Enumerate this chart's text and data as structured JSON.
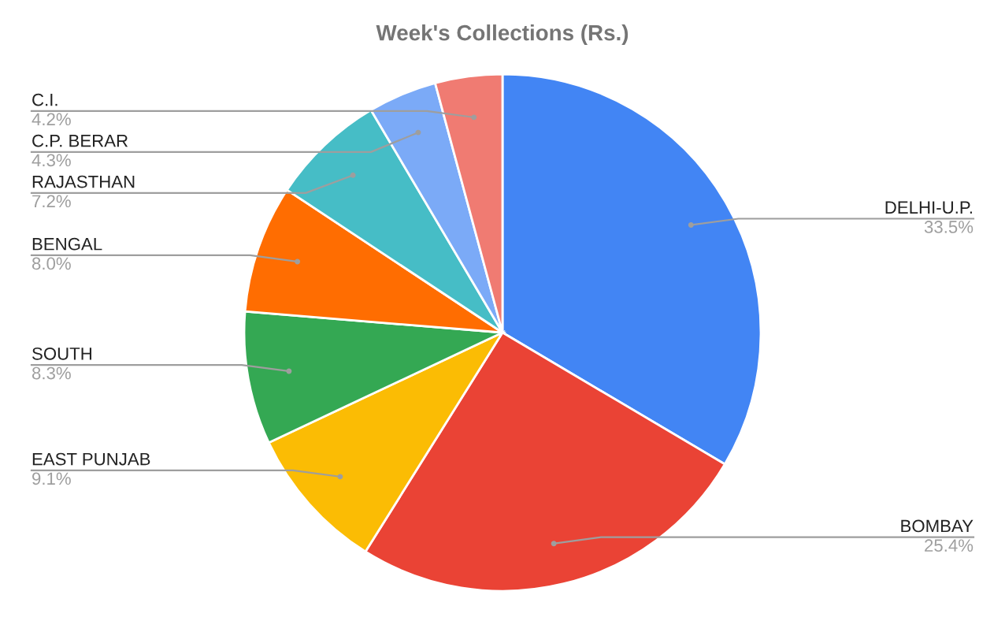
{
  "chart_data": {
    "type": "pie",
    "title": "Week's Collections (Rs.)",
    "categories": [
      "DELHI-U.P.",
      "BOMBAY",
      "EAST PUNJAB",
      "SOUTH",
      "BENGAL",
      "RAJASTHAN",
      "C.P. BERAR",
      "C.I."
    ],
    "values": [
      33.5,
      25.4,
      9.1,
      8.3,
      8.0,
      7.2,
      4.3,
      4.2
    ],
    "value_labels": [
      "33.5%",
      "25.4%",
      "9.1%",
      "8.3%",
      "8.0%",
      "7.2%",
      "4.3%",
      "4.2%"
    ],
    "colors": [
      "#4285f4",
      "#ea4335",
      "#fbbc04",
      "#34a853",
      "#ff6d01",
      "#46bdc6",
      "#7baaf7",
      "#f07b72"
    ],
    "legend": false
  }
}
